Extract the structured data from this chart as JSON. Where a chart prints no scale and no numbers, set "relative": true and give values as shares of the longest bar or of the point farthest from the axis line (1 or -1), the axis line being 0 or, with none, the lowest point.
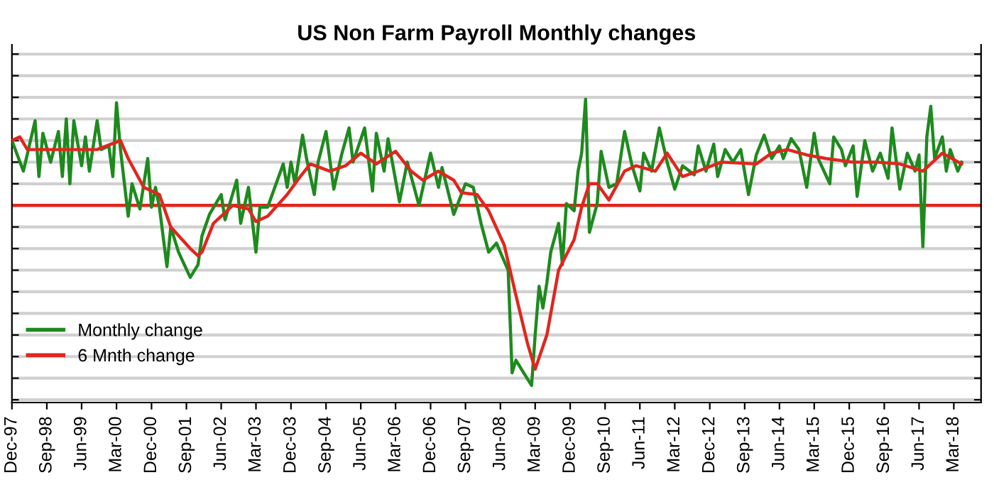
{
  "chart_data": {
    "type": "line",
    "title": "US Non Farm Payroll Monthly changes",
    "relative": true,
    "grid": "y",
    "legend": "bottom left",
    "tick_labels": "x",
    "marker": "none",
    "line_style": "solid",
    "xlim": [
      "1997-12",
      "2018-10"
    ],
    "xticks": [
      {
        "value": "1997-12",
        "label": "Dec-97"
      },
      {
        "value": "1998-09",
        "label": "Sep-98"
      },
      {
        "value": "1999-06",
        "label": "Jun-99"
      },
      {
        "value": "2000-03",
        "label": "Mar-00"
      },
      {
        "value": "2000-12",
        "label": "Dec-00"
      },
      {
        "value": "2001-09",
        "label": "Sep-01"
      },
      {
        "value": "2002-06",
        "label": "Jun-02"
      },
      {
        "value": "2003-03",
        "label": "Mar-03"
      },
      {
        "value": "2003-12",
        "label": "Dec-03"
      },
      {
        "value": "2004-09",
        "label": "Sep-04"
      },
      {
        "value": "2005-06",
        "label": "Jun-05"
      },
      {
        "value": "2006-03",
        "label": "Mar-06"
      },
      {
        "value": "2006-12",
        "label": "Dec-06"
      },
      {
        "value": "2007-09",
        "label": "Sep-07"
      },
      {
        "value": "2008-06",
        "label": "Jun-08"
      },
      {
        "value": "2009-03",
        "label": "Mar-09"
      },
      {
        "value": "2009-12",
        "label": "Dec-09"
      },
      {
        "value": "2010-09",
        "label": "Sep-10"
      },
      {
        "value": "2011-06",
        "label": "Jun-11"
      },
      {
        "value": "2012-03",
        "label": "Mar-12"
      },
      {
        "value": "2012-12",
        "label": "Dec-12"
      },
      {
        "value": "2013-09",
        "label": "Sep-13"
      },
      {
        "value": "2014-06",
        "label": "Jun-14"
      },
      {
        "value": "2015-03",
        "label": "Mar-15"
      },
      {
        "value": "2015-12",
        "label": "Dec-15"
      },
      {
        "value": "2016-09",
        "label": "Sep-16"
      },
      {
        "value": "2017-06",
        "label": "Jun-17"
      },
      {
        "value": "2018-03",
        "label": "Mar-18"
      }
    ],
    "ref_lines": [
      {
        "axis": "y",
        "value": 0,
        "color": "#e0261e"
      }
    ],
    "series": [
      {
        "name": "Monthly change",
        "color": "#1e8a1e",
        "x": [
          "1997-12",
          "1998-03",
          "1998-06",
          "1998-07",
          "1998-08",
          "1998-10",
          "1998-12",
          "1999-01",
          "1999-02",
          "1999-03",
          "1999-04",
          "1999-06",
          "1999-07",
          "1999-08",
          "1999-10",
          "1999-11",
          "2000-01",
          "2000-02",
          "2000-03",
          "2000-04",
          "2000-06",
          "2000-07",
          "2000-09",
          "2000-11",
          "2000-12",
          "2001-01",
          "2001-02",
          "2001-04",
          "2001-05",
          "2001-07",
          "2001-10",
          "2001-12",
          "2002-01",
          "2002-03",
          "2002-06",
          "2002-07",
          "2002-10",
          "2002-11",
          "2003-01",
          "2003-03",
          "2003-04",
          "2003-06",
          "2003-10",
          "2003-11",
          "2003-12",
          "2004-01",
          "2004-03",
          "2004-04",
          "2004-06",
          "2004-07",
          "2004-09",
          "2004-11",
          "2005-01",
          "2005-03",
          "2005-04",
          "2005-07",
          "2005-09",
          "2005-10",
          "2005-12",
          "2006-01",
          "2006-04",
          "2006-06",
          "2006-09",
          "2006-12",
          "2007-02",
          "2007-03",
          "2007-06",
          "2007-09",
          "2007-11",
          "2008-01",
          "2008-03",
          "2008-05",
          "2008-08",
          "2008-09",
          "2008-10",
          "2008-12",
          "2009-02",
          "2009-03",
          "2009-04",
          "2009-05",
          "2009-06",
          "2009-07",
          "2009-09",
          "2009-10",
          "2009-11",
          "2010-01",
          "2010-02",
          "2010-03",
          "2010-04",
          "2010-05",
          "2010-07",
          "2010-08",
          "2010-10",
          "2010-12",
          "2011-02",
          "2011-04",
          "2011-06",
          "2011-07",
          "2011-09",
          "2011-11",
          "2012-01",
          "2012-03",
          "2012-05",
          "2012-08",
          "2012-09",
          "2012-11",
          "2013-01",
          "2013-02",
          "2013-04",
          "2013-06",
          "2013-08",
          "2013-10",
          "2013-12",
          "2014-02",
          "2014-04",
          "2014-06",
          "2014-07",
          "2014-09",
          "2014-11",
          "2015-01",
          "2015-03",
          "2015-04",
          "2015-07",
          "2015-08",
          "2015-10",
          "2015-11",
          "2016-01",
          "2016-02",
          "2016-04",
          "2016-06",
          "2016-08",
          "2016-10",
          "2016-11",
          "2017-01",
          "2017-03",
          "2017-05",
          "2017-06",
          "2017-07",
          "2017-08",
          "2017-09",
          "2017-10",
          "2017-12",
          "2018-01",
          "2018-02",
          "2018-04",
          "2018-05"
        ],
        "values": [
          0.36,
          0.19,
          0.47,
          0.16,
          0.4,
          0.24,
          0.41,
          0.16,
          0.48,
          0.12,
          0.47,
          0.22,
          0.38,
          0.19,
          0.47,
          0.31,
          0.33,
          0.16,
          0.57,
          0.31,
          -0.06,
          0.12,
          -0.02,
          0.26,
          -0.01,
          0.1,
          -0.01,
          -0.34,
          -0.12,
          -0.26,
          -0.4,
          -0.33,
          -0.17,
          -0.05,
          0.06,
          -0.08,
          0.14,
          -0.1,
          0.1,
          -0.26,
          -0.01,
          -0.01,
          0.23,
          0.1,
          0.24,
          0.12,
          0.39,
          0.26,
          0.06,
          0.24,
          0.41,
          0.09,
          0.28,
          0.43,
          0.24,
          0.43,
          0.08,
          0.4,
          0.19,
          0.37,
          0.02,
          0.24,
          0.0,
          0.29,
          0.1,
          0.21,
          -0.05,
          0.12,
          0.1,
          -0.1,
          -0.26,
          -0.21,
          -0.36,
          -0.93,
          -0.86,
          -0.93,
          -1,
          -0.72,
          -0.45,
          -0.57,
          -0.43,
          -0.26,
          -0.1,
          -0.33,
          0.01,
          -0.03,
          0.19,
          0.29,
          0.59,
          -0.15,
          0.01,
          0.3,
          0.1,
          0.12,
          0.41,
          0.22,
          0.08,
          0.29,
          0.19,
          0.43,
          0.24,
          0.09,
          0.22,
          0.17,
          0.33,
          0.19,
          0.34,
          0.16,
          0.31,
          0.24,
          0.31,
          0.06,
          0.28,
          0.39,
          0.26,
          0.33,
          0.26,
          0.37,
          0.31,
          0.1,
          0.4,
          0.26,
          0.12,
          0.38,
          0.31,
          0.22,
          0.33,
          0.05,
          0.36,
          0.19,
          0.29,
          0.15,
          0.43,
          0.09,
          0.29,
          0.19,
          0.28,
          -0.23,
          0.38,
          0.55,
          0.26,
          0.38,
          0.19,
          0.31,
          0.19,
          0.24
        ]
      },
      {
        "name": "6 Mnth change",
        "color": "#e0261e",
        "x": [
          "1997-12",
          "1998-02",
          "1998-04",
          "1998-10",
          "1999-10",
          "2000-04",
          "2000-06",
          "2000-10",
          "2001-02",
          "2001-05",
          "2001-10",
          "2001-12",
          "2002-01",
          "2002-04",
          "2002-09",
          "2003-01",
          "2003-03",
          "2003-06",
          "2003-11",
          "2004-02",
          "2004-05",
          "2004-10",
          "2005-02",
          "2005-06",
          "2005-10",
          "2006-03",
          "2006-07",
          "2006-10",
          "2007-02",
          "2007-06",
          "2007-08",
          "2007-12",
          "2008-03",
          "2008-07",
          "2008-10",
          "2009-01",
          "2009-03",
          "2009-06",
          "2009-09",
          "2010-01",
          "2010-03",
          "2010-05",
          "2010-07",
          "2010-10",
          "2011-02",
          "2011-05",
          "2011-10",
          "2012-01",
          "2012-05",
          "2012-09",
          "2013-03",
          "2013-12",
          "2014-04",
          "2014-08",
          "2015-01",
          "2015-06",
          "2016-01",
          "2016-07",
          "2017-01",
          "2017-07",
          "2017-09",
          "2017-12",
          "2018-05"
        ],
        "values": [
          0.36,
          0.38,
          0.31,
          0.31,
          0.31,
          0.36,
          0.26,
          0.1,
          0.06,
          -0.12,
          -0.24,
          -0.28,
          -0.26,
          -0.1,
          0.0,
          -0.02,
          -0.09,
          -0.06,
          0.06,
          0.15,
          0.23,
          0.19,
          0.22,
          0.29,
          0.23,
          0.3,
          0.19,
          0.14,
          0.19,
          0.14,
          0.07,
          0.06,
          -0.03,
          -0.22,
          -0.5,
          -0.77,
          -0.91,
          -0.72,
          -0.36,
          -0.19,
          -0.01,
          0.12,
          0.12,
          0.03,
          0.19,
          0.22,
          0.19,
          0.29,
          0.16,
          0.19,
          0.24,
          0.23,
          0.29,
          0.31,
          0.28,
          0.26,
          0.24,
          0.24,
          0.23,
          0.19,
          0.23,
          0.29,
          0.23
        ]
      }
    ]
  }
}
